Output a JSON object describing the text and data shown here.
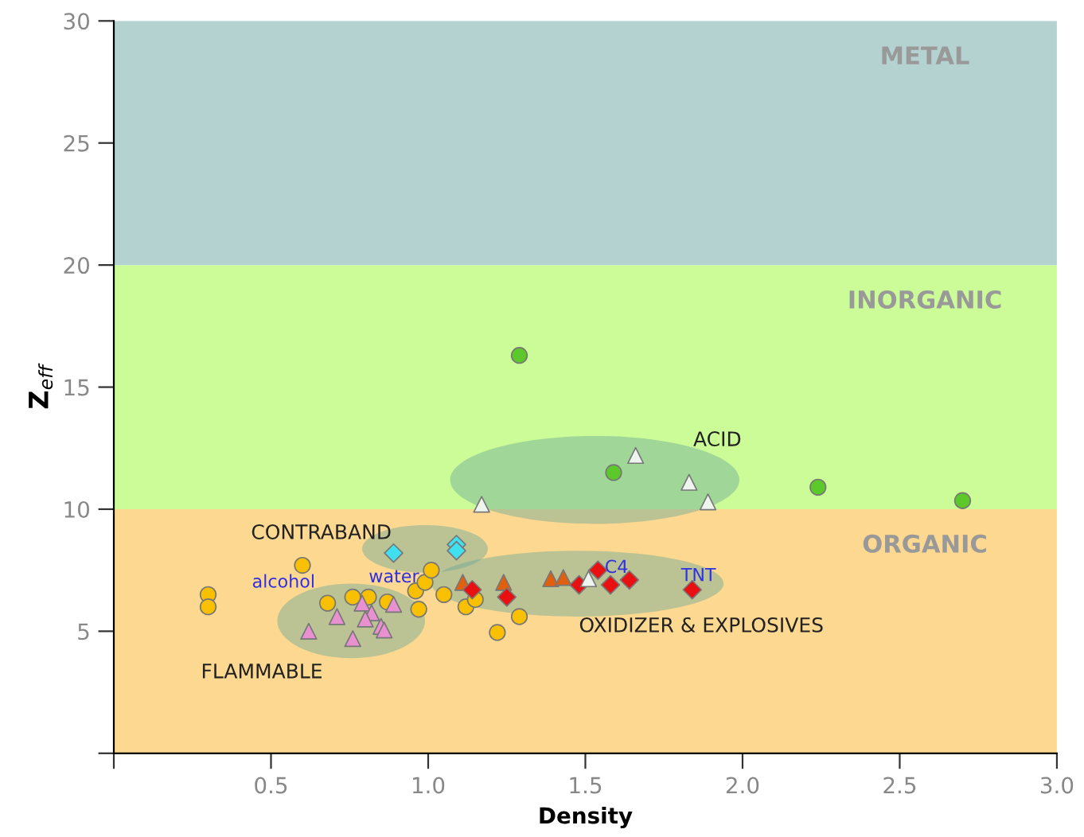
{
  "chart_data": {
    "type": "scatter",
    "xlabel": "Density",
    "ylabel": "Z$_{eff}$",
    "xlim": [
      0,
      3.0
    ],
    "xticks": [
      {
        "value": 0,
        "label": null
      },
      0.5,
      {
        "value": 1.0,
        "label": "1.0"
      },
      1.5,
      {
        "value": 2.0,
        "label": "2.0"
      },
      2.5,
      {
        "value": 3.0,
        "label": "3.0"
      }
    ],
    "ylim": [
      0,
      30
    ],
    "yticks": [
      {
        "value": 0,
        "label": null
      },
      5,
      10,
      15,
      20,
      25,
      30
    ],
    "grid": false,
    "legend": false,
    "bands": [
      {
        "axis": "y",
        "from": 0,
        "to": 10,
        "label": "ORGANIC",
        "color": "#fdd890"
      },
      {
        "axis": "y",
        "from": 10,
        "to": 20,
        "label": "INORGANIC",
        "color": "#ccfc98"
      },
      {
        "axis": "y",
        "from": 20,
        "to": 30,
        "label": "METAL",
        "color": "#b4d2cf"
      }
    ],
    "series": [
      {
        "color": "#5cc82a",
        "marker": "circle",
        "x": [
          1.29,
          1.59,
          2.24,
          2.7
        ],
        "values": [
          16.3,
          11.5,
          10.9,
          10.35
        ]
      },
      {
        "color": "#eef4ee",
        "marker": "triangle",
        "x": [
          1.17,
          1.66,
          1.83,
          1.89
        ],
        "values": [
          10.2,
          12.2,
          11.1,
          10.3
        ]
      },
      {
        "color": "#40e0f0",
        "marker": "diamond",
        "x": [
          0.89,
          1.09,
          1.09
        ],
        "values": [
          8.2,
          8.55,
          8.3
        ]
      },
      {
        "color": "#f8c000",
        "marker": "circle",
        "x": [
          0.3,
          0.3,
          0.6,
          0.68,
          0.76,
          0.81,
          0.87,
          0.96,
          0.99,
          1.01,
          0.97,
          1.05,
          1.12,
          1.15,
          1.29,
          1.22
        ],
        "values": [
          6.5,
          6.0,
          7.7,
          6.15,
          6.4,
          6.4,
          6.2,
          6.65,
          7.0,
          7.5,
          5.9,
          6.5,
          6.0,
          6.3,
          5.6,
          4.95
        ]
      },
      {
        "color": "#e890d0",
        "marker": "triangle",
        "x": [
          0.62,
          0.71,
          0.76,
          0.79,
          0.82,
          0.8,
          0.85,
          0.86,
          0.89
        ],
        "values": [
          5.0,
          5.6,
          4.7,
          6.15,
          5.75,
          5.5,
          5.2,
          5.05,
          6.1
        ]
      },
      {
        "color": "#e06010",
        "marker": "triangle",
        "x": [
          1.11,
          1.24,
          1.39,
          1.43
        ],
        "values": [
          7.0,
          7.0,
          7.15,
          7.2
        ]
      },
      {
        "color": "#e81010",
        "marker": "diamond",
        "x": [
          1.14,
          1.25,
          1.48,
          1.54,
          1.58,
          1.64,
          1.84
        ],
        "values": [
          6.7,
          6.4,
          6.9,
          7.5,
          6.9,
          7.1,
          6.7
        ]
      },
      {
        "color": "#eef4ee",
        "marker": "triangle",
        "x": [
          1.51
        ],
        "values": [
          7.15
        ]
      }
    ],
    "annotations": [
      "ACID",
      "CONTRABAND",
      "alcohol",
      "water",
      "C4",
      "TNT",
      "OXIDIZER & EXPLOSIVES",
      "FLAMMABLE"
    ]
  }
}
